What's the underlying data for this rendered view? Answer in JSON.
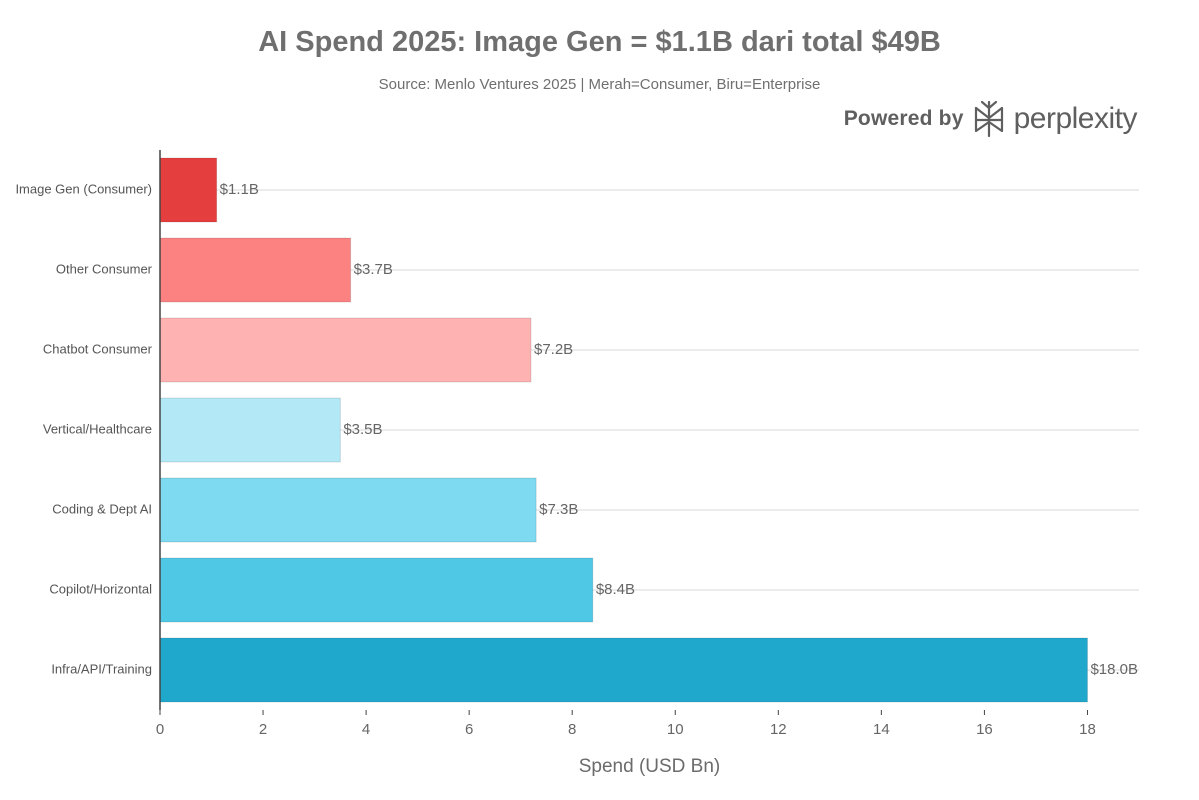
{
  "header": {
    "title": "AI Spend 2025: Image Gen = $1.1B dari total $49B",
    "subtitle": "Source: Menlo Ventures 2025 | Merah=Consumer, Biru=Enterprise"
  },
  "branding": {
    "prefix": "Powered by",
    "name": "perplexity",
    "logo_icon": "perplexity-logo-icon"
  },
  "chart_data": {
    "type": "bar",
    "orientation": "horizontal",
    "title": "AI Spend 2025: Image Gen = $1.1B dari total $49B",
    "subtitle": "Source: Menlo Ventures 2025 | Merah=Consumer, Biru=Enterprise",
    "categories": [
      "Image Gen (Consumer)",
      "Other Consumer",
      "Chatbot Consumer",
      "Vertical/Healthcare",
      "Coding & Dept AI",
      "Copilot/Horizontal",
      "Infra/API/Training"
    ],
    "values": [
      1.1,
      3.7,
      7.2,
      3.5,
      7.3,
      8.4,
      18.0
    ],
    "data_labels": [
      "$1.1B",
      "$3.7B",
      "$7.2B",
      "$3.5B",
      "$7.3B",
      "$8.4B",
      "$18.0B"
    ],
    "colors": [
      "#e53e3e",
      "#fc8181",
      "#feb2b2",
      "#b3e9f7",
      "#7ddaf0",
      "#4fc8e6",
      "#20a8cc"
    ],
    "xlabel": "Spend (USD Bn)",
    "ylabel": "",
    "xlim": [
      0,
      19
    ],
    "xticks": [
      0,
      2,
      4,
      6,
      8,
      10,
      12,
      14,
      16,
      18
    ],
    "grid": "horizontal lines at category centers",
    "legend": "none"
  }
}
